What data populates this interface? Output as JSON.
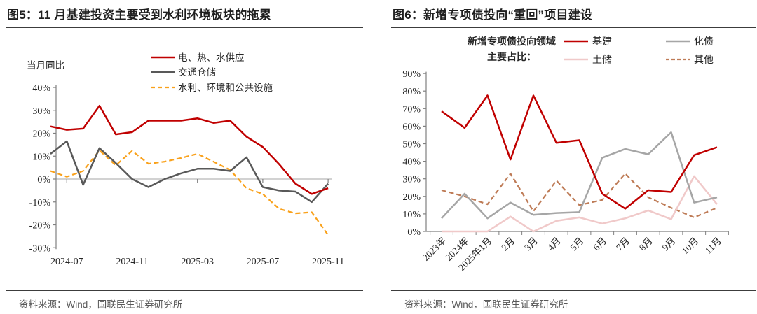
{
  "panels": [
    {
      "title": "图5：11 月基建投资主要受到水利环境板块的拖累",
      "source": "资料来源：Wind，国联民生证券研究所",
      "chart_data": {
        "type": "line",
        "title": "",
        "ylabel": "当月同比",
        "ylim": [
          -30,
          40
        ],
        "y_ticks": [
          40,
          30,
          20,
          10,
          0,
          -10,
          -20,
          -30
        ],
        "y_tick_suffix": "%",
        "grid": "zero-line-only",
        "legend_position": "top-center-vertical",
        "x": [
          "2024-06",
          "2024-07",
          "2024-08",
          "2024-09",
          "2024-10",
          "2024-11",
          "2024-12",
          "2025-01",
          "2025-02",
          "2025-03",
          "2025-04",
          "2025-05",
          "2025-06",
          "2025-07",
          "2025-08",
          "2025-09",
          "2025-10",
          "2025-11"
        ],
        "x_tick_labels": [
          "2024-07",
          "2024-11",
          "2025-03",
          "2025-07",
          "2025-11"
        ],
        "x_tick_indices": [
          1,
          5,
          9,
          13,
          17
        ],
        "series": [
          {
            "name": "电、热、水供应",
            "color": "#c00000",
            "dash": false,
            "values": [
              23,
              21.5,
              22,
              32,
              19.5,
              20.5,
              25.5,
              25.5,
              25.5,
              26.5,
              24.5,
              25.5,
              18.5,
              14,
              6.5,
              -2,
              -6.5,
              -4
            ]
          },
          {
            "name": "交通仓储",
            "color": "#595959",
            "dash": false,
            "values": [
              11,
              16.5,
              -2.5,
              13.5,
              7,
              0,
              -3.5,
              0,
              2.5,
              4.5,
              4.5,
              3.5,
              9.5,
              -3.5,
              -5,
              -5.5,
              -10,
              -2
            ]
          },
          {
            "name": "水利、环境和公共设施",
            "color": "#f9a11b",
            "dash": true,
            "values": [
              3.5,
              1,
              3.5,
              12.5,
              6,
              12.3,
              6.7,
              7.6,
              9.2,
              11,
              7.5,
              4,
              -4,
              -6.5,
              -13,
              -15,
              -14.5,
              -24.5
            ]
          }
        ]
      }
    },
    {
      "title": "图6：新增专项债投向“重回”项目建设",
      "source": "资料来源：Wind，国联民生证券研究所",
      "legend_header_line1": "新增专项债投向领域",
      "legend_header_line2": "主要占比：",
      "chart_data": {
        "type": "line",
        "title": "",
        "ylabel": "",
        "ylim": [
          0,
          90
        ],
        "y_ticks": [
          90,
          80,
          70,
          60,
          50,
          40,
          30,
          20,
          10,
          0
        ],
        "y_tick_suffix": "%",
        "grid": "none",
        "legend_position": "top-right-two-columns",
        "x": [
          "2023年",
          "2024年",
          "2025年1月",
          "2月",
          "3月",
          "4月",
          "5月",
          "6月",
          "7月",
          "8月",
          "9月",
          "10月",
          "11月"
        ],
        "x_labels_rotated_45": true,
        "series": [
          {
            "name": "基建",
            "color": "#c00000",
            "dash": false,
            "values": [
              68.5,
              59,
              77.5,
              41,
              77.5,
              50.5,
              52,
              21.5,
              13,
              23.5,
              22.5,
              43.5,
              48
            ]
          },
          {
            "name": "化债",
            "color": "#a6a6a6",
            "dash": false,
            "values": [
              7.5,
              21.5,
              7.5,
              16.5,
              9.5,
              10.5,
              11,
              42,
              47,
              44,
              56.5,
              16.5,
              19.5
            ]
          },
          {
            "name": "土储",
            "color": "#f0c9c9",
            "dash": false,
            "values": [
              0,
              0,
              0,
              8.5,
              0,
              6,
              8,
              4.5,
              7.5,
              12,
              7,
              31.5,
              15.5
            ]
          },
          {
            "name": "其他",
            "color": "#be7b56",
            "dash": true,
            "values": [
              23.5,
              20,
              15.5,
              33,
              11.5,
              29,
              15,
              18,
              33,
              19.5,
              13.5,
              8,
              13.5
            ]
          }
        ]
      }
    }
  ]
}
